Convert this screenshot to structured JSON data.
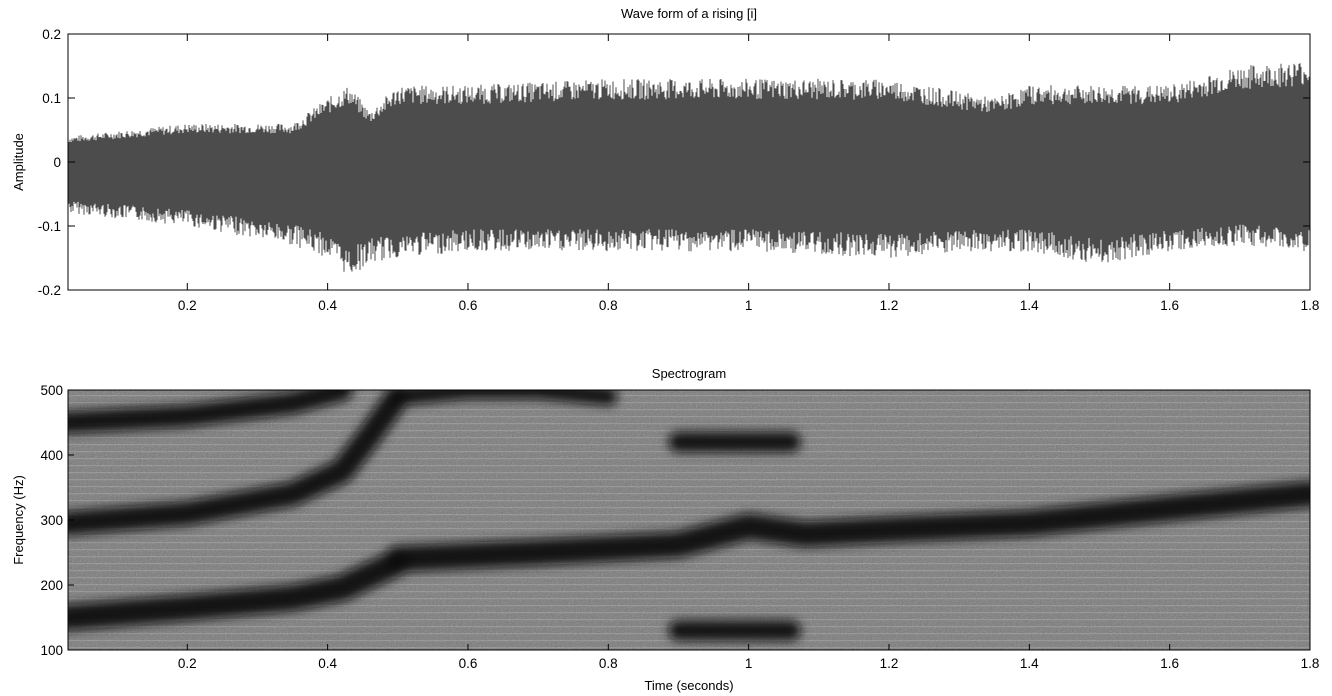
{
  "chart_data": [
    {
      "type": "line",
      "title": "Wave form of a rising [i]",
      "xlabel": "",
      "ylabel": "Amplitude",
      "xlim": [
        0.03,
        1.8
      ],
      "ylim": [
        -0.2,
        0.2
      ],
      "xticks": [
        0.2,
        0.4,
        0.6,
        0.8,
        1,
        1.2,
        1.4,
        1.6,
        1.8
      ],
      "xtick_labels": [
        "0.2",
        "0.4",
        "0.6",
        "0.8",
        "1",
        "1.2",
        "1.4",
        "1.6",
        "1.8"
      ],
      "yticks": [
        0.2,
        0.1,
        0,
        -0.1,
        -0.2
      ],
      "ytick_labels": [
        "0.2",
        "0.1",
        "0",
        "-0.1",
        "-0.2"
      ],
      "grid": false,
      "series": [
        {
          "envelope_time": [
            0.03,
            0.2,
            0.35,
            0.4,
            0.43,
            0.46,
            0.5,
            0.6,
            0.8,
            1.0,
            1.2,
            1.35,
            1.4,
            1.5,
            1.6,
            1.7,
            1.8
          ],
          "envelope_upper": [
            0.04,
            0.06,
            0.06,
            0.1,
            0.12,
            0.08,
            0.12,
            0.12,
            0.13,
            0.13,
            0.13,
            0.1,
            0.12,
            0.12,
            0.12,
            0.15,
            0.16
          ],
          "envelope_lower": [
            -0.08,
            -0.1,
            -0.13,
            -0.15,
            -0.18,
            -0.16,
            -0.15,
            -0.14,
            -0.14,
            -0.14,
            -0.15,
            -0.14,
            -0.14,
            -0.16,
            -0.14,
            -0.13,
            -0.14
          ]
        }
      ]
    },
    {
      "type": "heatmap",
      "title": "Spectrogram",
      "xlabel": "Time (seconds)",
      "ylabel": "Frequency (Hz)",
      "xlim": [
        0.03,
        1.8
      ],
      "ylim": [
        100,
        500
      ],
      "xticks": [
        0.2,
        0.4,
        0.6,
        0.8,
        1,
        1.2,
        1.4,
        1.6,
        1.8
      ],
      "xtick_labels": [
        "0.2",
        "0.4",
        "0.6",
        "0.8",
        "1",
        "1.2",
        "1.4",
        "1.6",
        "1.8"
      ],
      "yticks": [
        500,
        400,
        300,
        200,
        100
      ],
      "ytick_labels": [
        "500",
        "400",
        "300",
        "200",
        "100"
      ],
      "colormap": "gray",
      "dark_bands": [
        {
          "time": [
            0.03,
            0.2,
            0.35,
            0.42,
            0.46,
            0.5
          ],
          "frequency": [
            150,
            165,
            180,
            195,
            215,
            235
          ]
        },
        {
          "time": [
            0.5,
            0.7,
            0.9,
            1.0,
            1.08,
            1.2,
            1.4,
            1.6,
            1.8
          ],
          "frequency": [
            240,
            250,
            262,
            290,
            278,
            285,
            295,
            318,
            340
          ]
        },
        {
          "time": [
            0.03,
            0.2,
            0.35,
            0.42,
            0.46,
            0.5
          ],
          "frequency": [
            295,
            310,
            340,
            375,
            430,
            490
          ]
        },
        {
          "time": [
            0.03,
            0.2,
            0.35,
            0.42
          ],
          "frequency": [
            450,
            460,
            480,
            500
          ]
        },
        {
          "time": [
            0.5,
            0.6,
            0.7,
            0.8
          ],
          "frequency": [
            490,
            500,
            500,
            490
          ]
        },
        {
          "time": [
            0.9,
            0.96,
            1.02,
            1.06
          ],
          "frequency": [
            420,
            420,
            420,
            420
          ]
        },
        {
          "time": [
            0.9,
            0.96,
            1.02,
            1.06
          ],
          "frequency": [
            130,
            130,
            130,
            130
          ]
        }
      ]
    }
  ]
}
